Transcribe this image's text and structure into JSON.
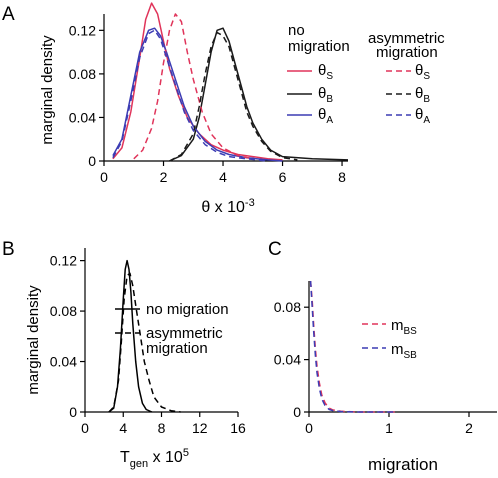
{
  "panels": {
    "A": {
      "letter": "A",
      "ylabel": "marginal density",
      "xlabel_main": "θ x 10",
      "xlabel_exp": "-3",
      "legend": {
        "header_left": [
          "no",
          "migration"
        ],
        "header_right": [
          "asymmetric",
          "migration"
        ],
        "rows": [
          {
            "sym": "θ",
            "sub": "S",
            "color": "#e0345a"
          },
          {
            "sym": "θ",
            "sub": "B",
            "color": "#1a1a1a"
          },
          {
            "sym": "θ",
            "sub": "A",
            "color": "#3c3cb4"
          }
        ]
      }
    },
    "B": {
      "letter": "B",
      "ylabel": "marginal density",
      "xlabel_main": "T",
      "xlabel_sub": "gen",
      "xlabel_tail": " x 10",
      "xlabel_exp": "5",
      "legend": {
        "solid": "no migration",
        "dashed": [
          "asymmetric",
          "migration"
        ]
      }
    },
    "C": {
      "letter": "C",
      "xlabel": "migration",
      "legend": [
        {
          "sym": "m",
          "sub": "BS",
          "color": "#e0345a"
        },
        {
          "sym": "m",
          "sub": "SB",
          "color": "#3c3cb4"
        }
      ]
    }
  },
  "chart_data": [
    {
      "type": "line",
      "panel": "A",
      "xlabel": "θ x 10-3",
      "ylabel": "marginal density",
      "xlim": [
        0,
        8.2
      ],
      "ylim": [
        0,
        0.135
      ],
      "xticks": [
        "0",
        "2",
        "4",
        "6",
        "8"
      ],
      "yticks": [
        "0",
        "0.04",
        "0.08",
        "0.12"
      ],
      "series": [
        {
          "name": "θS",
          "group": "no migration",
          "color": "#e0345a",
          "dashed": false,
          "x": [
            0.3,
            0.6,
            0.9,
            1.2,
            1.4,
            1.6,
            1.8,
            2.0,
            2.2,
            2.5,
            2.8,
            3.2,
            3.6,
            4.0,
            4.5,
            5.0,
            5.5,
            6.0
          ],
          "y": [
            0.002,
            0.012,
            0.045,
            0.095,
            0.13,
            0.145,
            0.135,
            0.11,
            0.085,
            0.06,
            0.04,
            0.025,
            0.015,
            0.01,
            0.006,
            0.004,
            0.002,
            0.001
          ]
        },
        {
          "name": "θB",
          "group": "no migration",
          "color": "#1a1a1a",
          "dashed": false,
          "x": [
            2.2,
            2.6,
            3.0,
            3.2,
            3.4,
            3.6,
            3.8,
            4.0,
            4.2,
            4.4,
            4.6,
            4.8,
            5.0,
            5.3,
            5.6,
            6.0,
            7.0,
            8.2
          ],
          "y": [
            0.0,
            0.005,
            0.02,
            0.04,
            0.07,
            0.1,
            0.12,
            0.122,
            0.11,
            0.09,
            0.07,
            0.05,
            0.035,
            0.02,
            0.01,
            0.004,
            0.002,
            0.001
          ]
        },
        {
          "name": "θA",
          "group": "no migration",
          "color": "#3c3cb4",
          "dashed": false,
          "x": [
            0.3,
            0.6,
            0.9,
            1.2,
            1.5,
            1.7,
            1.9,
            2.1,
            2.4,
            2.7,
            3.0,
            3.4,
            3.8,
            4.2,
            4.8,
            5.5,
            6.0
          ],
          "y": [
            0.005,
            0.02,
            0.06,
            0.1,
            0.12,
            0.122,
            0.115,
            0.1,
            0.075,
            0.05,
            0.032,
            0.018,
            0.01,
            0.006,
            0.003,
            0.001,
            0.0
          ]
        },
        {
          "name": "θS",
          "group": "asymmetric migration",
          "color": "#e0345a",
          "dashed": true,
          "x": [
            1.0,
            1.3,
            1.6,
            1.8,
            2.0,
            2.2,
            2.4,
            2.6,
            2.8,
            3.0,
            3.3,
            3.6,
            4.0,
            4.5,
            5.0
          ],
          "y": [
            0.002,
            0.01,
            0.03,
            0.055,
            0.09,
            0.12,
            0.135,
            0.128,
            0.1,
            0.075,
            0.045,
            0.025,
            0.012,
            0.005,
            0.002
          ]
        },
        {
          "name": "θB",
          "group": "asymmetric migration",
          "color": "#1a1a1a",
          "dashed": true,
          "x": [
            2.2,
            2.6,
            3.0,
            3.2,
            3.4,
            3.6,
            3.8,
            4.0,
            4.2,
            4.4,
            4.6,
            4.8,
            5.0,
            5.3,
            5.6,
            6.0,
            6.5
          ],
          "y": [
            0.0,
            0.006,
            0.025,
            0.05,
            0.08,
            0.105,
            0.118,
            0.115,
            0.105,
            0.085,
            0.065,
            0.045,
            0.032,
            0.018,
            0.009,
            0.003,
            0.001
          ]
        },
        {
          "name": "θA",
          "group": "asymmetric migration",
          "color": "#3c3cb4",
          "dashed": true,
          "x": [
            0.3,
            0.6,
            0.9,
            1.2,
            1.5,
            1.7,
            1.9,
            2.1,
            2.4,
            2.7,
            3.0,
            3.4,
            3.8,
            4.2,
            4.8,
            5.5
          ],
          "y": [
            0.003,
            0.018,
            0.055,
            0.095,
            0.117,
            0.12,
            0.112,
            0.095,
            0.07,
            0.045,
            0.028,
            0.015,
            0.008,
            0.004,
            0.002,
            0.0
          ]
        }
      ]
    },
    {
      "type": "line",
      "panel": "B",
      "xlabel": "Tgen x 105",
      "ylabel": "marginal density",
      "xlim": [
        0,
        16
      ],
      "ylim": [
        0,
        0.13
      ],
      "xticks": [
        "0",
        "4",
        "8",
        "12",
        "16"
      ],
      "yticks": [
        "0",
        "0.04",
        "0.08",
        "0.12"
      ],
      "series": [
        {
          "name": "no migration",
          "color": "#000000",
          "dashed": false,
          "x": [
            2.5,
            3.0,
            3.4,
            3.7,
            4.0,
            4.2,
            4.4,
            4.6,
            4.8,
            5.0,
            5.3,
            5.6,
            6.0,
            6.4,
            7.0
          ],
          "y": [
            0.0,
            0.003,
            0.02,
            0.05,
            0.09,
            0.113,
            0.12,
            0.113,
            0.095,
            0.07,
            0.04,
            0.02,
            0.007,
            0.002,
            0.0
          ]
        },
        {
          "name": "asymmetric migration",
          "color": "#000000",
          "dashed": true,
          "x": [
            2.5,
            3.0,
            3.5,
            3.8,
            4.1,
            4.4,
            4.7,
            5.0,
            5.4,
            5.8,
            6.2,
            6.7,
            7.2,
            8.0,
            9.0,
            10.0
          ],
          "y": [
            0.0,
            0.004,
            0.025,
            0.055,
            0.09,
            0.108,
            0.11,
            0.1,
            0.08,
            0.06,
            0.04,
            0.025,
            0.012,
            0.004,
            0.001,
            0.0
          ]
        }
      ]
    },
    {
      "type": "line",
      "panel": "C",
      "xlabel": "migration",
      "xlim": [
        0,
        2.35
      ],
      "ylim": [
        0,
        0.1
      ],
      "xticks": [
        "0",
        "1",
        "2"
      ],
      "yticks": [
        "0",
        "0.04",
        "0.08"
      ],
      "series": [
        {
          "name": "mBS",
          "color": "#e0345a",
          "dashed": true,
          "x": [
            0.02,
            0.04,
            0.06,
            0.08,
            0.1,
            0.13,
            0.16,
            0.2,
            0.25,
            0.3,
            0.4,
            0.6,
            0.8,
            1.1
          ],
          "y": [
            0.1,
            0.085,
            0.065,
            0.048,
            0.035,
            0.022,
            0.013,
            0.007,
            0.003,
            0.0015,
            0.0005,
            0.0,
            0.0,
            0.0
          ]
        },
        {
          "name": "mSB",
          "color": "#3c3cb4",
          "dashed": true,
          "x": [
            0.02,
            0.04,
            0.06,
            0.08,
            0.1,
            0.13,
            0.16,
            0.2,
            0.25,
            0.3,
            0.4,
            0.6,
            0.8,
            1.1
          ],
          "y": [
            0.1,
            0.08,
            0.06,
            0.043,
            0.03,
            0.018,
            0.01,
            0.005,
            0.002,
            0.001,
            0.0003,
            0.0,
            0.0,
            0.0
          ]
        }
      ]
    }
  ]
}
